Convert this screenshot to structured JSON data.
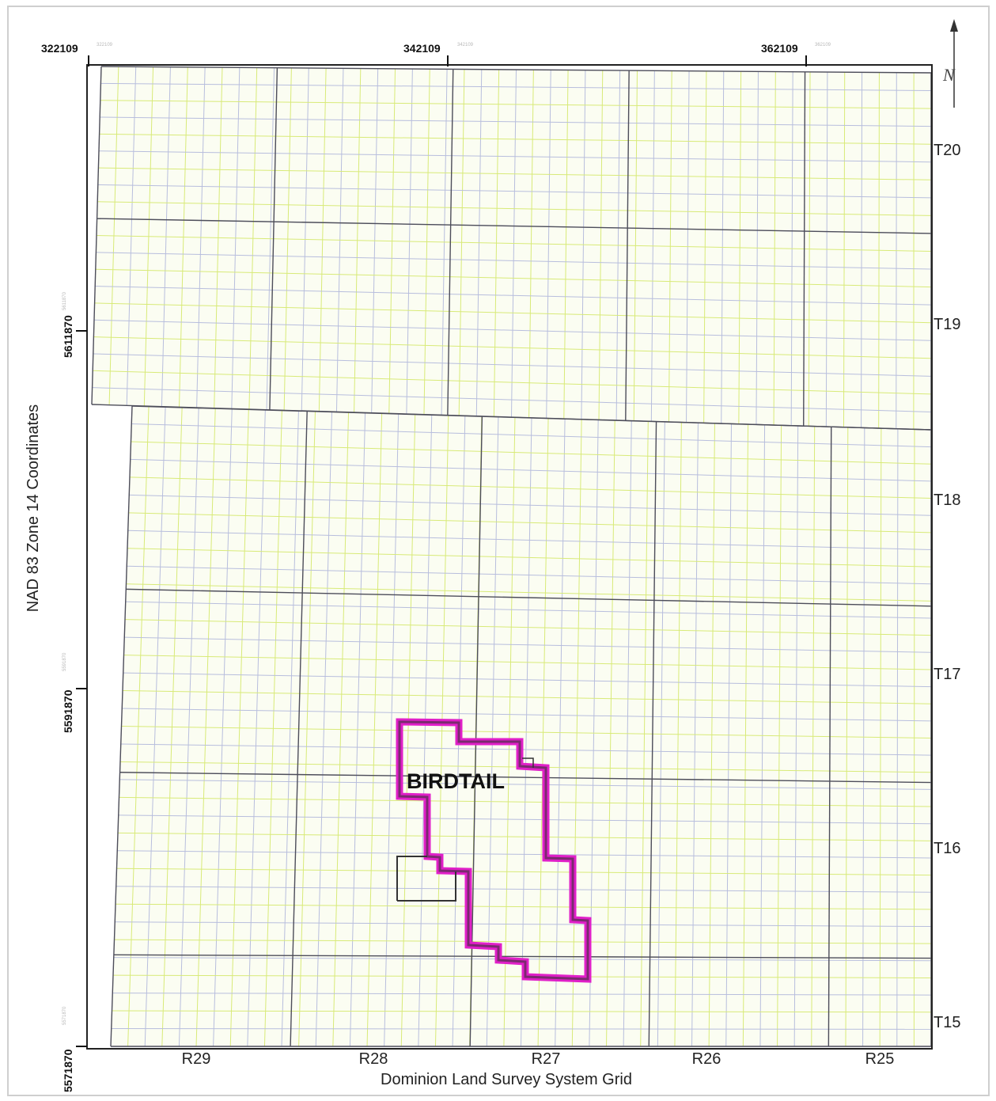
{
  "map": {
    "title_axis_left": "NAD 83 Zone 14 Coordinates",
    "title_axis_bottom": "Dominion Land Survey System Grid",
    "north_arrow": {
      "icon": "north-arrow-icon",
      "label": "N"
    },
    "easting_labels": [
      {
        "value": "322109",
        "ghost": "322109"
      },
      {
        "value": "342109",
        "ghost": "342109"
      },
      {
        "value": "362109",
        "ghost": "362109"
      }
    ],
    "northing_labels": [
      {
        "value": "5611870",
        "ghost": "5611870"
      },
      {
        "value": "5591870",
        "ghost": "5591870"
      },
      {
        "value": "5571870",
        "ghost": "5571870"
      }
    ],
    "townships": [
      "T20",
      "T19",
      "T18",
      "T17",
      "T16",
      "T15"
    ],
    "ranges": [
      "R29",
      "R28",
      "R27",
      "R26",
      "R25"
    ],
    "area_label": "BIRDTAIL",
    "colors": {
      "boundary": "#e020c8",
      "boundary_dark": "#7a2a6e",
      "grid_minor_blue": "#b8bedd",
      "grid_minor_green": "#d8ea78",
      "grid_major": "#4d4d5a",
      "frame": "#222222",
      "map_background": "#fbfdf2"
    }
  }
}
